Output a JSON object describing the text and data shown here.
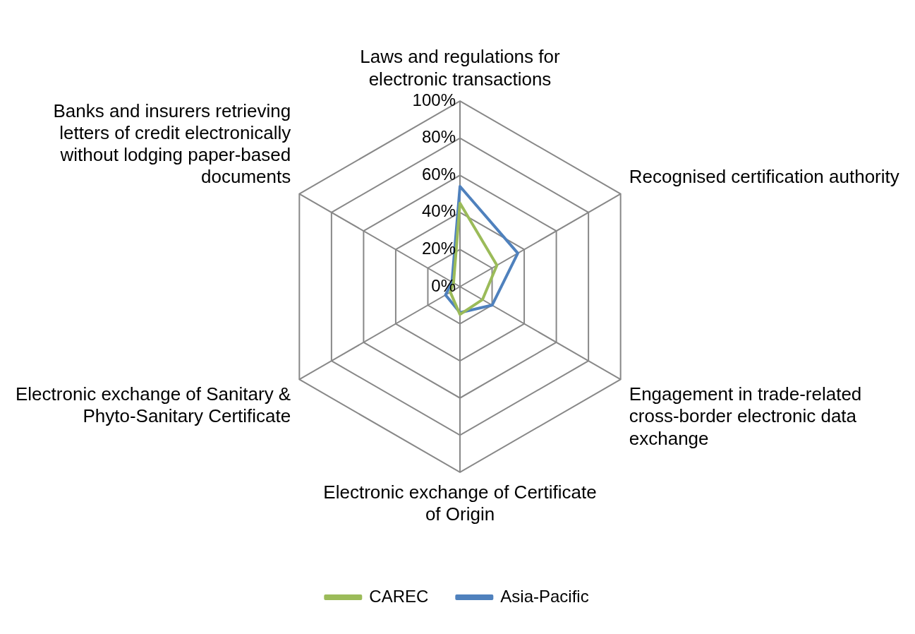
{
  "chart_data": {
    "type": "radar",
    "categories": [
      "Laws and regulations for electronic transactions",
      "Recognised certification authority",
      "Engagement in trade-related cross-border electronic data exchange",
      "Electronic exchange of Certificate of Origin",
      "Electronic exchange of Sanitary & Phyto-Sanitary Certificate",
      "Banks and insurers retrieving letters of credit electronically without lodging paper-based documents"
    ],
    "series": [
      {
        "name": "CAREC",
        "color": "#9bbb59",
        "values": [
          45,
          23,
          14,
          15,
          6,
          4
        ]
      },
      {
        "name": "Asia-Pacific",
        "color": "#4f81bd",
        "values": [
          54,
          36,
          20,
          14,
          9,
          5
        ]
      }
    ],
    "ylim": [
      0,
      100
    ],
    "yticks": [
      {
        "value": 0,
        "label": "0%"
      },
      {
        "value": 20,
        "label": "20%"
      },
      {
        "value": 40,
        "label": "40%"
      },
      {
        "value": 60,
        "label": "60%"
      },
      {
        "value": 80,
        "label": "80%"
      },
      {
        "value": 100,
        "label": "100%"
      }
    ],
    "grid": true,
    "legend": "bottom",
    "marker": "none"
  }
}
